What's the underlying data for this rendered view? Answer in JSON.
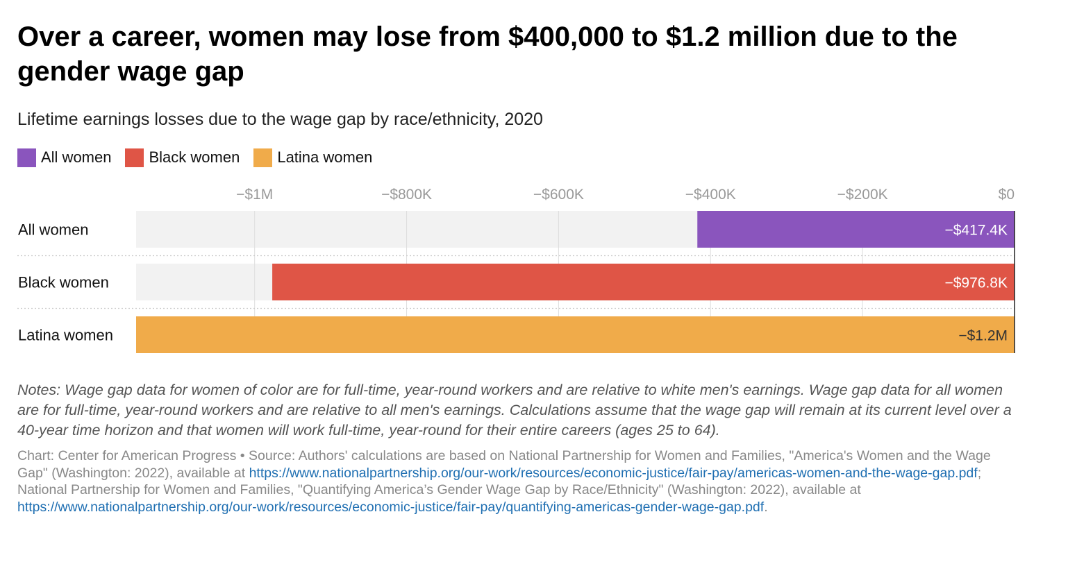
{
  "header": {
    "title": "Over a career, women may lose from $400,000 to $1.2 million due to the gender wage gap",
    "subtitle": "Lifetime earnings losses due to the wage gap by race/ethnicity, 2020"
  },
  "legend": [
    {
      "label": "All women",
      "color": "#8a55bd"
    },
    {
      "label": "Black women",
      "color": "#df5546"
    },
    {
      "label": "Latina women",
      "color": "#f0ab4a"
    }
  ],
  "chart_data": {
    "type": "bar",
    "orientation": "horizontal",
    "categories": [
      "All women",
      "Black women",
      "Latina women"
    ],
    "values": [
      -417400,
      -976800,
      -1156000
    ],
    "value_labels": [
      "−$417.4K",
      "−$976.8K",
      "−$1.2M"
    ],
    "colors": [
      "#8a55bd",
      "#df5546",
      "#f0ab4a"
    ],
    "value_label_colors": [
      "#ffffff",
      "#ffffff",
      "#333333"
    ],
    "xlim": [
      -1156000,
      0
    ],
    "x_ticks": [
      -1000000,
      -800000,
      -600000,
      -400000,
      -200000,
      0
    ],
    "x_tick_labels": [
      "−$1M",
      "−$800K",
      "−$600K",
      "−$400K",
      "−$200K",
      "$0"
    ],
    "axis_position": "top",
    "grid": true,
    "background_track_color": "#f2f2f2",
    "legend_position": "top-left"
  },
  "notes": "Notes: Wage gap data for women of color are for full-time, year-round workers and are relative to white men's earnings. Wage gap data for all women are for full-time, year-round workers and are relative to all men's earnings. Calculations assume that the wage gap will remain at its current level over a 40-year time horizon and that women will work full-time, year-round for their entire careers (ages 25 to 64).",
  "source": {
    "part1": "Chart: Center for American Progress • Source: Authors' calculations are based on National Partnership for Women and Families, \"America's Women and the Wage Gap\" (Washington: 2022), available at ",
    "link1": "https://www.nationalpartnership.org/our-work/resources/economic-justice/fair-pay/americas-women-and-the-wage-gap.pdf",
    "part2": "; National Partnership for Women and Families, \"Quantifying America’s Gender Wage Gap by Race/Ethnicity\" (Washington: 2022), available at ",
    "link2": "https://www.nationalpartnership.org/our-work/resources/economic-justice/fair-pay/quantifying-americas-gender-wage-gap.pdf",
    "part3": "."
  }
}
